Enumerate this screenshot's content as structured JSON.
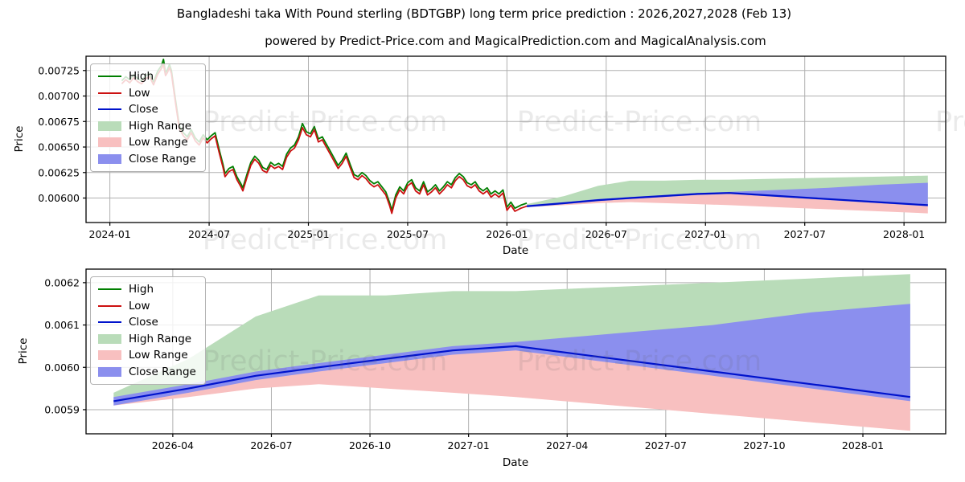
{
  "header": {
    "title": "Bangladeshi taka With Pound sterling (BDTGBP) long term price prediction : 2026,2027,2028 (Feb 13)",
    "subtitle": "powered by Predict-Price.com and MagicalPrediction.com and MagicalAnalysis.com"
  },
  "watermark": {
    "text": "Predict-Price.com"
  },
  "colors": {
    "high": "#007f00",
    "low": "#cc1111",
    "close": "#0013cc",
    "high_range": "#b9dcb9",
    "low_range": "#f8c0c0",
    "close_range": "#8b8fee",
    "grid": "#b0b0b0",
    "spine": "#000000"
  },
  "chart_data": [
    {
      "type": "line",
      "title": "BDTGBP history and long term prediction",
      "xlabel": "Date",
      "ylabel": "Price",
      "grid": true,
      "legend_position": "upper left",
      "xlim": [
        2023.88,
        2028.21
      ],
      "ylim": [
        0.00576,
        0.00739
      ],
      "x_tick_values": [
        2024.0,
        2024.5,
        2025.0,
        2025.5,
        2026.0,
        2026.5,
        2027.0,
        2027.5,
        2028.0
      ],
      "x_tick_labels": [
        "2024-01",
        "2024-07",
        "2025-01",
        "2025-07",
        "2026-01",
        "2026-07",
        "2027-01",
        "2027-07",
        "2028-01"
      ],
      "y_tick_values": [
        0.006,
        0.00625,
        0.0065,
        0.00675,
        0.007,
        0.00725
      ],
      "y_tick_labels": [
        "0.00600",
        "0.00625",
        "0.00650",
        "0.00675",
        "0.00700",
        "0.00725"
      ],
      "legend": [
        {
          "label": "High",
          "kind": "line",
          "color": "#007f00"
        },
        {
          "label": "Low",
          "kind": "line",
          "color": "#cc1111"
        },
        {
          "label": "Close",
          "kind": "line",
          "color": "#0013cc"
        },
        {
          "label": "High Range",
          "kind": "patch",
          "color": "#b9dcb9"
        },
        {
          "label": "Low Range",
          "kind": "patch",
          "color": "#f8c0c0"
        },
        {
          "label": "Close Range",
          "kind": "patch",
          "color": "#8b8fee"
        }
      ],
      "history": {
        "x": [
          2024.06,
          2024.08,
          2024.1,
          2024.12,
          2024.14,
          2024.16,
          2024.18,
          2024.2,
          2024.22,
          2024.24,
          2024.26,
          2024.27,
          2024.28,
          2024.29,
          2024.3,
          2024.31,
          2024.33,
          2024.35,
          2024.37,
          2024.39,
          2024.41,
          2024.43,
          2024.45,
          2024.47,
          2024.49,
          2024.51,
          2024.53,
          2024.55,
          2024.57,
          2024.58,
          2024.6,
          2024.62,
          2024.64,
          2024.66,
          2024.67,
          2024.69,
          2024.71,
          2024.73,
          2024.75,
          2024.77,
          2024.79,
          2024.81,
          2024.83,
          2024.85,
          2024.87,
          2024.89,
          2024.91,
          2024.93,
          2024.95,
          2024.97,
          2024.99,
          2025.01,
          2025.03,
          2025.05,
          2025.07,
          2025.09,
          2025.11,
          2025.13,
          2025.15,
          2025.17,
          2025.19,
          2025.21,
          2025.23,
          2025.25,
          2025.27,
          2025.29,
          2025.31,
          2025.33,
          2025.35,
          2025.37,
          2025.39,
          2025.41,
          2025.42,
          2025.44,
          2025.46,
          2025.48,
          2025.5,
          2025.52,
          2025.54,
          2025.56,
          2025.58,
          2025.6,
          2025.62,
          2025.64,
          2025.66,
          2025.68,
          2025.7,
          2025.72,
          2025.74,
          2025.76,
          2025.78,
          2025.8,
          2025.82,
          2025.84,
          2025.86,
          2025.88,
          2025.9,
          2025.92,
          2025.94,
          2025.96,
          2025.98,
          2026.0,
          2026.02,
          2026.04,
          2026.07,
          2026.1
        ],
        "low": [
          0.00712,
          0.00716,
          0.00713,
          0.00718,
          0.00714,
          0.00712,
          0.00717,
          0.00719,
          0.00711,
          0.00721,
          0.00727,
          0.00731,
          0.0072,
          0.00723,
          0.00728,
          0.00722,
          0.00694,
          0.00668,
          0.00661,
          0.00657,
          0.00664,
          0.00656,
          0.00652,
          0.00659,
          0.00654,
          0.00658,
          0.00661,
          0.00645,
          0.0063,
          0.00621,
          0.00626,
          0.00628,
          0.00618,
          0.00611,
          0.00607,
          0.0062,
          0.00632,
          0.00638,
          0.00634,
          0.00627,
          0.00625,
          0.00632,
          0.00629,
          0.00631,
          0.00628,
          0.0064,
          0.00646,
          0.00649,
          0.00657,
          0.00669,
          0.00662,
          0.0066,
          0.00667,
          0.00655,
          0.00657,
          0.0065,
          0.00643,
          0.00636,
          0.00629,
          0.00634,
          0.00641,
          0.0063,
          0.0062,
          0.00618,
          0.00622,
          0.00619,
          0.00614,
          0.00611,
          0.00613,
          0.00608,
          0.00603,
          0.00592,
          0.00585,
          0.006,
          0.00608,
          0.00604,
          0.00612,
          0.00615,
          0.00607,
          0.00604,
          0.00613,
          0.00603,
          0.00606,
          0.0061,
          0.00604,
          0.00608,
          0.00613,
          0.0061,
          0.00617,
          0.00621,
          0.00618,
          0.00612,
          0.0061,
          0.00613,
          0.00607,
          0.00604,
          0.00607,
          0.00601,
          0.00604,
          0.00601,
          0.00605,
          0.00588,
          0.00593,
          0.00587,
          0.0059,
          0.00592
        ],
        "high": [
          0.00715,
          0.00719,
          0.00716,
          0.00721,
          0.00717,
          0.00715,
          0.0072,
          0.00722,
          0.00714,
          0.00724,
          0.0073,
          0.00736,
          0.00723,
          0.00726,
          0.00731,
          0.00725,
          0.00697,
          0.00671,
          0.00664,
          0.0066,
          0.00667,
          0.00659,
          0.00655,
          0.00662,
          0.00657,
          0.00661,
          0.00664,
          0.00648,
          0.00633,
          0.00624,
          0.00629,
          0.00631,
          0.00621,
          0.00614,
          0.0061,
          0.00623,
          0.00635,
          0.00641,
          0.00637,
          0.0063,
          0.00628,
          0.00635,
          0.00632,
          0.00634,
          0.00631,
          0.00643,
          0.00649,
          0.00652,
          0.0066,
          0.00673,
          0.00665,
          0.00663,
          0.0067,
          0.00658,
          0.0066,
          0.00653,
          0.00646,
          0.00639,
          0.00632,
          0.00637,
          0.00644,
          0.00633,
          0.00623,
          0.00621,
          0.00625,
          0.00622,
          0.00617,
          0.00614,
          0.00616,
          0.00611,
          0.00606,
          0.00595,
          0.00588,
          0.00603,
          0.00611,
          0.00607,
          0.00615,
          0.00618,
          0.0061,
          0.00607,
          0.00616,
          0.00606,
          0.00609,
          0.00613,
          0.00607,
          0.00611,
          0.00616,
          0.00613,
          0.0062,
          0.00624,
          0.00621,
          0.00615,
          0.00613,
          0.00616,
          0.0061,
          0.00607,
          0.0061,
          0.00604,
          0.00607,
          0.00604,
          0.00608,
          0.00591,
          0.00596,
          0.0059,
          0.00593,
          0.00595
        ]
      },
      "forecast": {
        "x": [
          2026.1,
          2026.29,
          2026.46,
          2026.62,
          2026.79,
          2026.96,
          2027.12,
          2027.37,
          2027.62,
          2027.87,
          2028.12
        ],
        "close": [
          0.00592,
          0.00595,
          0.00598,
          0.006,
          0.00602,
          0.00604,
          0.00605,
          0.00602,
          0.00599,
          0.00596,
          0.00593
        ],
        "high": [
          0.00594,
          0.00602,
          0.00612,
          0.00617,
          0.00617,
          0.00618,
          0.00618,
          0.00619,
          0.0062,
          0.00621,
          0.00622
        ],
        "low": [
          0.00591,
          0.00593,
          0.00595,
          0.00596,
          0.00595,
          0.00594,
          0.00593,
          0.00591,
          0.00589,
          0.00587,
          0.00585
        ],
        "close_top": [
          0.00593,
          0.00596,
          0.00599,
          0.00601,
          0.00603,
          0.00605,
          0.00606,
          0.00608,
          0.0061,
          0.00613,
          0.00615
        ],
        "close_bottom": [
          0.00591,
          0.00594,
          0.00597,
          0.00599,
          0.00601,
          0.00603,
          0.00604,
          0.00601,
          0.00598,
          0.00595,
          0.00592
        ]
      }
    },
    {
      "type": "line",
      "title": "BDTGBP prediction detail 2026-2028",
      "xlabel": "Date",
      "ylabel": "Price",
      "grid": true,
      "legend_position": "upper left",
      "xlim": [
        2026.03,
        2028.21
      ],
      "ylim": [
        0.005843,
        0.006232
      ],
      "x_tick_values": [
        2026.25,
        2026.5,
        2026.75,
        2027.0,
        2027.25,
        2027.5,
        2027.75,
        2028.0
      ],
      "x_tick_labels": [
        "2026-04",
        "2026-07",
        "2026-10",
        "2027-01",
        "2027-04",
        "2027-07",
        "2027-10",
        "2028-01"
      ],
      "y_tick_values": [
        0.0059,
        0.006,
        0.0061,
        0.0062
      ],
      "y_tick_labels": [
        "0.0059",
        "0.0060",
        "0.0061",
        "0.0062"
      ],
      "legend": [
        {
          "label": "High",
          "kind": "line",
          "color": "#007f00"
        },
        {
          "label": "Low",
          "kind": "line",
          "color": "#cc1111"
        },
        {
          "label": "Close",
          "kind": "line",
          "color": "#0013cc"
        },
        {
          "label": "High Range",
          "kind": "patch",
          "color": "#b9dcb9"
        },
        {
          "label": "Low Range",
          "kind": "patch",
          "color": "#f8c0c0"
        },
        {
          "label": "Close Range",
          "kind": "patch",
          "color": "#8b8fee"
        }
      ],
      "forecast": {
        "x": [
          2026.1,
          2026.29,
          2026.46,
          2026.62,
          2026.79,
          2026.96,
          2027.12,
          2027.37,
          2027.62,
          2027.87,
          2028.12
        ],
        "close": [
          0.00592,
          0.00595,
          0.00598,
          0.006,
          0.00602,
          0.00604,
          0.00605,
          0.00602,
          0.00599,
          0.00596,
          0.00593
        ],
        "high": [
          0.00594,
          0.00602,
          0.00612,
          0.00617,
          0.00617,
          0.00618,
          0.00618,
          0.00619,
          0.0062,
          0.00621,
          0.00622
        ],
        "low": [
          0.00591,
          0.00593,
          0.00595,
          0.00596,
          0.00595,
          0.00594,
          0.00593,
          0.00591,
          0.00589,
          0.00587,
          0.00585
        ],
        "close_top": [
          0.00593,
          0.00596,
          0.00599,
          0.00601,
          0.00603,
          0.00605,
          0.00606,
          0.00608,
          0.0061,
          0.00613,
          0.00615
        ],
        "close_bottom": [
          0.00591,
          0.00594,
          0.00597,
          0.00599,
          0.00601,
          0.00603,
          0.00604,
          0.00601,
          0.00598,
          0.00595,
          0.00592
        ]
      }
    }
  ]
}
